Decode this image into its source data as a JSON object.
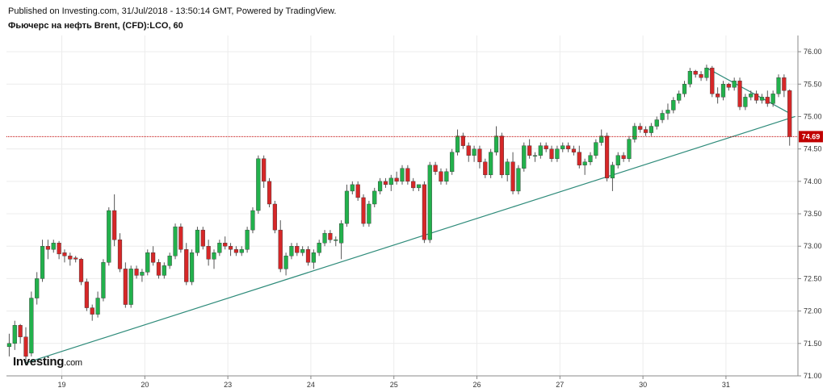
{
  "header": {
    "published": "Published on Investing.com, 31/Jul/2018 - 13:50:14 GMT, Powered by TradingView.",
    "title": "Фьючерс на нефть Brent, (CFD):LCO, 60"
  },
  "logo": {
    "main": "Investing",
    "domain": ".com"
  },
  "colors": {
    "up": "#22b14c",
    "down": "#d62728",
    "wick": "#555555",
    "trendline": "#2e8b7a",
    "price_line": "#c00000",
    "grid": "#ececec"
  },
  "chart_data": {
    "type": "candlestick",
    "title": "Фьючерс на нефть Brent, (CFD):LCO, 60",
    "grid": true,
    "ylim": [
      71.0,
      76.25
    ],
    "y_ticks": [
      "71.00",
      "71.50",
      "72.00",
      "72.50",
      "73.00",
      "73.50",
      "74.00",
      "74.50",
      "75.00",
      "75.50",
      "76.00"
    ],
    "x_ticks": [
      {
        "label": "19",
        "bar": 9.5
      },
      {
        "label": "20",
        "bar": 24.5
      },
      {
        "label": "23",
        "bar": 39.5
      },
      {
        "label": "24",
        "bar": 54.5
      },
      {
        "label": "25",
        "bar": 69.5
      },
      {
        "label": "26",
        "bar": 84.5
      },
      {
        "label": "27",
        "bar": 99.5
      },
      {
        "label": "30",
        "bar": 114.5
      },
      {
        "label": "31",
        "bar": 129.5
      }
    ],
    "current_price": 74.69,
    "current_price_label": "74.69",
    "candles": [
      [
        71.45,
        71.65,
        71.3,
        71.5
      ],
      [
        71.5,
        71.85,
        71.4,
        71.78
      ],
      [
        71.78,
        71.8,
        71.5,
        71.6
      ],
      [
        71.6,
        71.75,
        71.2,
        71.3
      ],
      [
        71.35,
        72.3,
        71.3,
        72.2
      ],
      [
        72.2,
        72.6,
        72.1,
        72.5
      ],
      [
        72.5,
        73.1,
        72.45,
        73.0
      ],
      [
        73.0,
        73.1,
        72.8,
        72.95
      ],
      [
        72.95,
        73.1,
        72.9,
        73.05
      ],
      [
        73.05,
        73.08,
        72.8,
        72.88
      ],
      [
        72.9,
        72.95,
        72.75,
        72.85
      ],
      [
        72.85,
        72.9,
        72.7,
        72.8
      ],
      [
        72.82,
        72.85,
        72.75,
        72.8
      ],
      [
        72.8,
        72.82,
        72.4,
        72.45
      ],
      [
        72.45,
        72.5,
        72.0,
        72.05
      ],
      [
        72.05,
        72.1,
        71.85,
        71.95
      ],
      [
        71.95,
        72.3,
        71.9,
        72.2
      ],
      [
        72.2,
        72.8,
        72.15,
        72.75
      ],
      [
        72.75,
        73.6,
        72.7,
        73.55
      ],
      [
        73.55,
        73.8,
        73.0,
        73.1
      ],
      [
        73.1,
        73.2,
        72.6,
        72.65
      ],
      [
        72.65,
        72.75,
        72.05,
        72.1
      ],
      [
        72.1,
        72.7,
        72.05,
        72.65
      ],
      [
        72.65,
        72.7,
        72.5,
        72.55
      ],
      [
        72.55,
        72.65,
        72.45,
        72.6
      ],
      [
        72.6,
        72.95,
        72.55,
        72.9
      ],
      [
        72.9,
        73.0,
        72.7,
        72.75
      ],
      [
        72.75,
        72.8,
        72.5,
        72.55
      ],
      [
        72.55,
        72.75,
        72.5,
        72.7
      ],
      [
        72.7,
        72.9,
        72.65,
        72.85
      ],
      [
        72.85,
        73.35,
        72.8,
        73.3
      ],
      [
        73.3,
        73.35,
        72.9,
        72.95
      ],
      [
        72.95,
        73.05,
        72.4,
        72.45
      ],
      [
        72.45,
        72.95,
        72.4,
        72.9
      ],
      [
        72.9,
        73.3,
        72.85,
        73.25
      ],
      [
        73.25,
        73.3,
        72.95,
        73.0
      ],
      [
        73.0,
        73.1,
        72.7,
        72.8
      ],
      [
        72.8,
        72.95,
        72.65,
        72.9
      ],
      [
        72.9,
        73.1,
        72.85,
        73.05
      ],
      [
        73.05,
        73.15,
        72.95,
        73.0
      ],
      [
        73.0,
        73.05,
        72.85,
        72.95
      ],
      [
        72.95,
        73.0,
        72.85,
        72.9
      ],
      [
        72.9,
        73.0,
        72.85,
        72.95
      ],
      [
        72.95,
        73.3,
        72.9,
        73.25
      ],
      [
        73.25,
        73.6,
        73.2,
        73.55
      ],
      [
        73.55,
        74.4,
        73.5,
        74.35
      ],
      [
        74.35,
        74.4,
        73.9,
        74.0
      ],
      [
        74.0,
        74.05,
        73.6,
        73.65
      ],
      [
        73.65,
        73.7,
        73.2,
        73.25
      ],
      [
        73.25,
        73.4,
        72.6,
        72.65
      ],
      [
        72.65,
        72.9,
        72.55,
        72.85
      ],
      [
        72.85,
        73.05,
        72.8,
        73.0
      ],
      [
        73.0,
        73.05,
        72.85,
        72.9
      ],
      [
        72.9,
        73.0,
        72.85,
        72.95
      ],
      [
        72.95,
        73.0,
        72.7,
        72.75
      ],
      [
        72.75,
        72.95,
        72.65,
        72.9
      ],
      [
        72.9,
        73.1,
        72.85,
        73.05
      ],
      [
        73.05,
        73.25,
        73.0,
        73.2
      ],
      [
        73.2,
        73.25,
        73.05,
        73.1
      ],
      [
        73.1,
        73.15,
        73.0,
        73.1
      ],
      [
        73.05,
        73.4,
        72.8,
        73.35
      ],
      [
        73.35,
        73.95,
        73.3,
        73.85
      ],
      [
        73.85,
        74.0,
        73.8,
        73.95
      ],
      [
        73.95,
        74.0,
        73.7,
        73.75
      ],
      [
        73.75,
        73.8,
        73.3,
        73.35
      ],
      [
        73.35,
        73.7,
        73.3,
        73.65
      ],
      [
        73.65,
        73.9,
        73.6,
        73.85
      ],
      [
        73.85,
        74.05,
        73.8,
        74.0
      ],
      [
        74.0,
        74.05,
        73.9,
        73.95
      ],
      [
        73.95,
        74.1,
        73.85,
        74.05
      ],
      [
        74.05,
        74.15,
        73.95,
        74.0
      ],
      [
        74.0,
        74.25,
        73.95,
        74.2
      ],
      [
        74.2,
        74.25,
        73.95,
        74.0
      ],
      [
        74.0,
        74.05,
        73.85,
        73.9
      ],
      [
        73.9,
        73.95,
        73.85,
        73.95
      ],
      [
        73.95,
        74.0,
        73.05,
        73.1
      ],
      [
        73.1,
        74.3,
        73.05,
        74.25
      ],
      [
        74.25,
        74.3,
        74.1,
        74.15
      ],
      [
        74.15,
        74.2,
        73.95,
        74.0
      ],
      [
        74.0,
        74.2,
        73.95,
        74.15
      ],
      [
        74.15,
        74.5,
        74.1,
        74.45
      ],
      [
        74.45,
        74.8,
        74.4,
        74.7
      ],
      [
        74.7,
        74.75,
        74.5,
        74.55
      ],
      [
        74.55,
        74.6,
        74.3,
        74.4
      ],
      [
        74.4,
        74.55,
        74.3,
        74.5
      ],
      [
        74.5,
        74.55,
        74.2,
        74.3
      ],
      [
        74.3,
        74.35,
        74.05,
        74.1
      ],
      [
        74.1,
        74.5,
        74.05,
        74.45
      ],
      [
        74.45,
        74.85,
        74.4,
        74.7
      ],
      [
        74.7,
        74.75,
        74.05,
        74.1
      ],
      [
        74.1,
        74.35,
        74.0,
        74.3
      ],
      [
        74.3,
        74.45,
        73.8,
        73.85
      ],
      [
        73.85,
        74.25,
        73.8,
        74.2
      ],
      [
        74.2,
        74.6,
        74.15,
        74.55
      ],
      [
        74.55,
        74.65,
        74.35,
        74.4
      ],
      [
        74.4,
        74.45,
        74.3,
        74.4
      ],
      [
        74.4,
        74.6,
        74.35,
        74.55
      ],
      [
        74.55,
        74.6,
        74.45,
        74.5
      ],
      [
        74.5,
        74.55,
        74.3,
        74.35
      ],
      [
        74.35,
        74.55,
        74.3,
        74.5
      ],
      [
        74.5,
        74.6,
        74.45,
        74.55
      ],
      [
        74.55,
        74.6,
        74.45,
        74.5
      ],
      [
        74.5,
        74.55,
        74.4,
        74.45
      ],
      [
        74.45,
        74.55,
        74.2,
        74.25
      ],
      [
        74.25,
        74.35,
        74.1,
        74.3
      ],
      [
        74.3,
        74.45,
        74.25,
        74.4
      ],
      [
        74.4,
        74.65,
        74.35,
        74.6
      ],
      [
        74.6,
        74.8,
        74.55,
        74.7
      ],
      [
        74.7,
        74.75,
        74.0,
        74.05
      ],
      [
        74.05,
        74.3,
        73.85,
        74.25
      ],
      [
        74.25,
        74.45,
        74.2,
        74.4
      ],
      [
        74.4,
        74.45,
        74.3,
        74.35
      ],
      [
        74.35,
        74.7,
        74.3,
        74.65
      ],
      [
        74.65,
        74.9,
        74.6,
        74.85
      ],
      [
        74.85,
        74.9,
        74.75,
        74.8
      ],
      [
        74.8,
        74.85,
        74.7,
        74.75
      ],
      [
        74.75,
        74.9,
        74.7,
        74.85
      ],
      [
        74.85,
        75.0,
        74.8,
        74.95
      ],
      [
        74.95,
        75.1,
        74.9,
        75.05
      ],
      [
        75.05,
        75.2,
        74.95,
        75.1
      ],
      [
        75.1,
        75.3,
        75.05,
        75.25
      ],
      [
        75.25,
        75.4,
        75.2,
        75.35
      ],
      [
        75.35,
        75.55,
        75.3,
        75.5
      ],
      [
        75.5,
        75.75,
        75.45,
        75.7
      ],
      [
        75.7,
        75.72,
        75.6,
        75.65
      ],
      [
        75.65,
        75.7,
        75.55,
        75.6
      ],
      [
        75.6,
        75.8,
        75.55,
        75.75
      ],
      [
        75.75,
        75.78,
        75.3,
        75.35
      ],
      [
        75.35,
        75.45,
        75.2,
        75.3
      ],
      [
        75.3,
        75.55,
        75.25,
        75.5
      ],
      [
        75.5,
        75.52,
        75.4,
        75.45
      ],
      [
        75.45,
        75.6,
        75.4,
        75.55
      ],
      [
        75.55,
        75.6,
        75.1,
        75.15
      ],
      [
        75.15,
        75.35,
        75.1,
        75.3
      ],
      [
        75.3,
        75.4,
        75.25,
        75.35
      ],
      [
        75.35,
        75.4,
        75.2,
        75.25
      ],
      [
        75.25,
        75.35,
        75.2,
        75.3
      ],
      [
        75.3,
        75.4,
        75.15,
        75.2
      ],
      [
        75.2,
        75.4,
        75.15,
        75.35
      ],
      [
        75.35,
        75.65,
        75.3,
        75.6
      ],
      [
        75.6,
        75.65,
        75.3,
        75.4
      ],
      [
        75.4,
        75.42,
        74.55,
        74.69
      ]
    ],
    "trendlines": [
      {
        "from": {
          "bar": 3,
          "price": 71.2
        },
        "to": {
          "bar": 142,
          "price": 75.0
        }
      },
      {
        "from": {
          "bar": 126,
          "price": 75.75
        },
        "to": {
          "bar": 141,
          "price": 75.05
        }
      }
    ]
  }
}
